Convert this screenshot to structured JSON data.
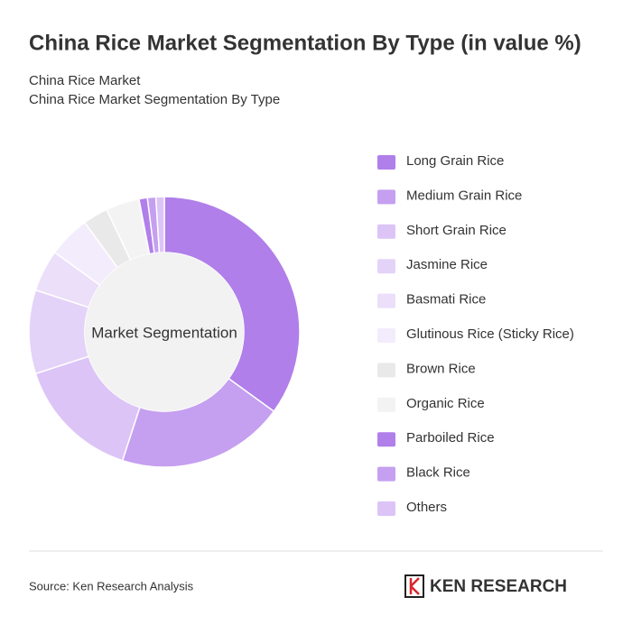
{
  "chart_data": {
    "type": "donut",
    "title": "China Rice Market Segmentation By Type (in value %)",
    "subtitles": [
      "China Rice Market",
      "China Rice Market Segmentation By Type"
    ],
    "center_label": "Market Segmentation",
    "categories": [
      "Long Grain Rice",
      "Medium Grain Rice",
      "Short Grain Rice",
      "Jasmine Rice",
      "Basmati Rice",
      "Glutinous Rice (Sticky Rice)",
      "Brown Rice",
      "Organic Rice",
      "Parboiled Rice",
      "Black Rice",
      "Others"
    ],
    "values": [
      35,
      20,
      15,
      10,
      5,
      5,
      3,
      4,
      1,
      1,
      1
    ],
    "colors": [
      "#b07fea",
      "#c59ff0",
      "#dcc4f7",
      "#e4d3f8",
      "#ebdffa",
      "#f3ecfc",
      "#e9e9e9",
      "#f3f3f3",
      "#b07fea",
      "#c59ff0",
      "#dcc4f7"
    ],
    "legend": "right"
  },
  "footer": {
    "source": "Source: Ken Research Analysis",
    "logo": "KEN RESEARCH"
  }
}
